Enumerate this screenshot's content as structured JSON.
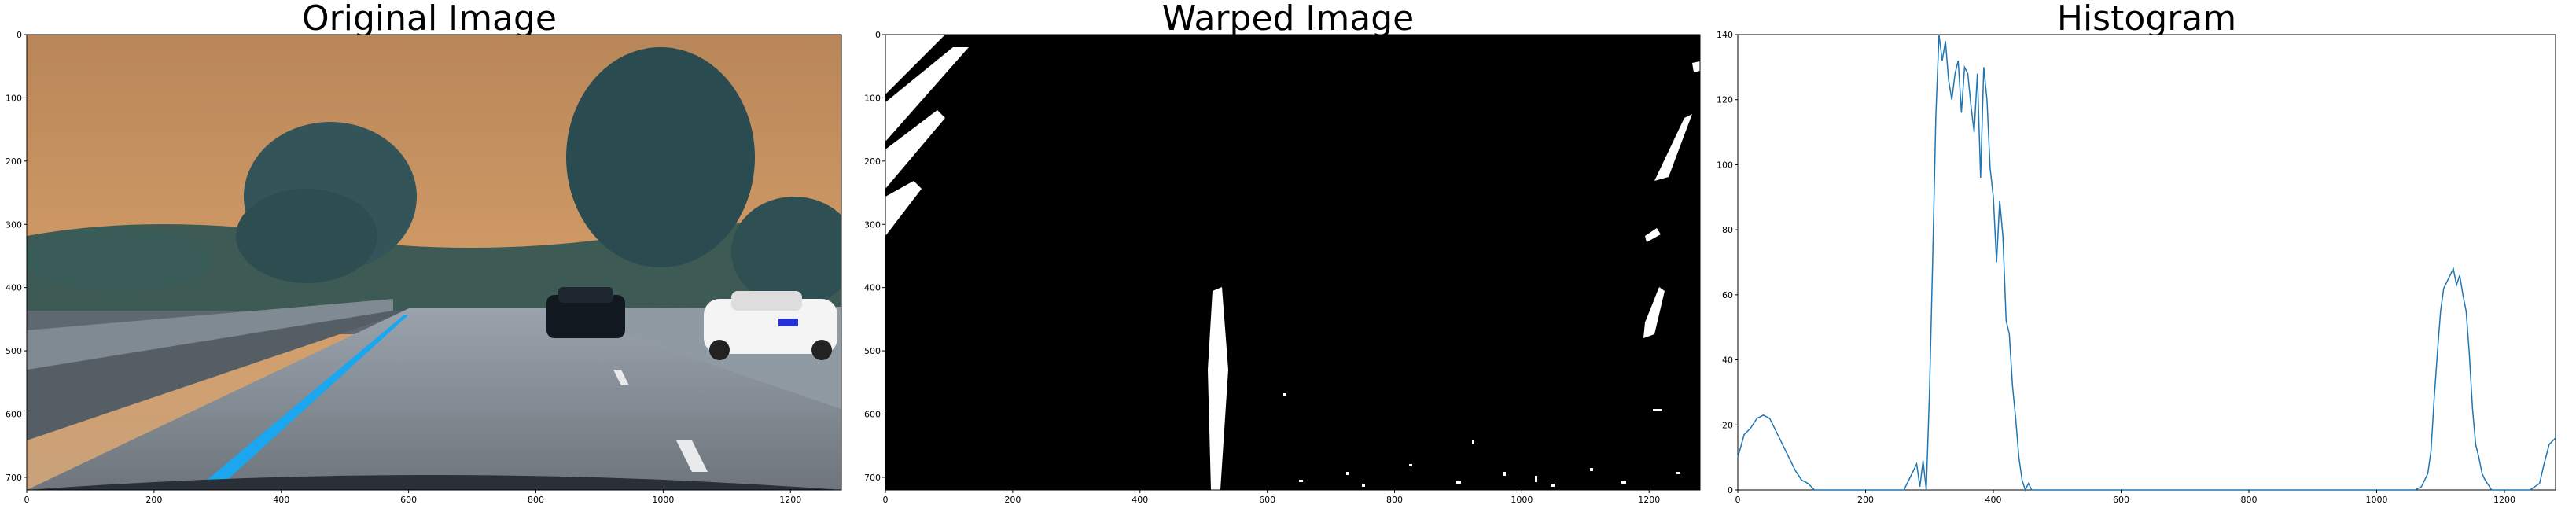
{
  "panels": [
    {
      "title": "Original Image",
      "image": "road dashcam photo, orange sky, trees, highway with cars",
      "x_ticks": [
        "0",
        "200",
        "400",
        "600",
        "800",
        "1000",
        "1200"
      ],
      "y_ticks": [
        "0",
        "100",
        "200",
        "300",
        "400",
        "500",
        "600",
        "700"
      ]
    },
    {
      "title": "Warped Image",
      "image": "binary bird's-eye lane mask",
      "x_ticks": [
        "0",
        "200",
        "400",
        "600",
        "800",
        "1000",
        "1200"
      ],
      "y_ticks": [
        "0",
        "100",
        "200",
        "300",
        "400",
        "500",
        "600",
        "700"
      ]
    }
  ],
  "chart_data": {
    "type": "line",
    "title": "Histogram",
    "xlabel": "",
    "ylabel": "",
    "xlim": [
      0,
      1280
    ],
    "ylim": [
      0,
      140
    ],
    "x_ticks": [
      0,
      200,
      400,
      600,
      800,
      1000,
      1200
    ],
    "y_ticks": [
      0,
      20,
      40,
      60,
      80,
      100,
      120,
      140
    ],
    "grid": false,
    "line_color": "#1f77b4",
    "series": [
      {
        "x": [
          0,
          10,
          20,
          30,
          40,
          50,
          60,
          70,
          80,
          90,
          100,
          110,
          120,
          140,
          160,
          180,
          200,
          220,
          240,
          260,
          270,
          280,
          285,
          290,
          295,
          300,
          305,
          310,
          315,
          320,
          325,
          330,
          335,
          340,
          345,
          350,
          355,
          360,
          365,
          370,
          375,
          380,
          385,
          390,
          395,
          400,
          405,
          410,
          415,
          420,
          425,
          430,
          435,
          440,
          445,
          450,
          455,
          460,
          480,
          500,
          600,
          700,
          800,
          900,
          1000,
          1020,
          1040,
          1060,
          1070,
          1080,
          1085,
          1090,
          1095,
          1100,
          1105,
          1110,
          1115,
          1120,
          1125,
          1130,
          1135,
          1140,
          1145,
          1150,
          1155,
          1160,
          1165,
          1170,
          1180,
          1200,
          1240,
          1255,
          1262,
          1270,
          1280
        ],
        "y": [
          10,
          17,
          19,
          22,
          23,
          22,
          18,
          14,
          10,
          6,
          3,
          2,
          0,
          0,
          0,
          0,
          0,
          0,
          0,
          0,
          4,
          8,
          1,
          9,
          0,
          30,
          70,
          115,
          140,
          132,
          138,
          126,
          120,
          128,
          132,
          116,
          130,
          128,
          118,
          110,
          128,
          96,
          130,
          120,
          99,
          90,
          70,
          89,
          78,
          52,
          48,
          32,
          22,
          10,
          3,
          0,
          2,
          0,
          0,
          0,
          0,
          0,
          0,
          0,
          0,
          0,
          0,
          0,
          1,
          5,
          12,
          28,
          42,
          55,
          62,
          64,
          66,
          68,
          63,
          66,
          60,
          55,
          42,
          25,
          14,
          10,
          5,
          3,
          0,
          0,
          0,
          2,
          8,
          14,
          16
        ]
      }
    ]
  }
}
